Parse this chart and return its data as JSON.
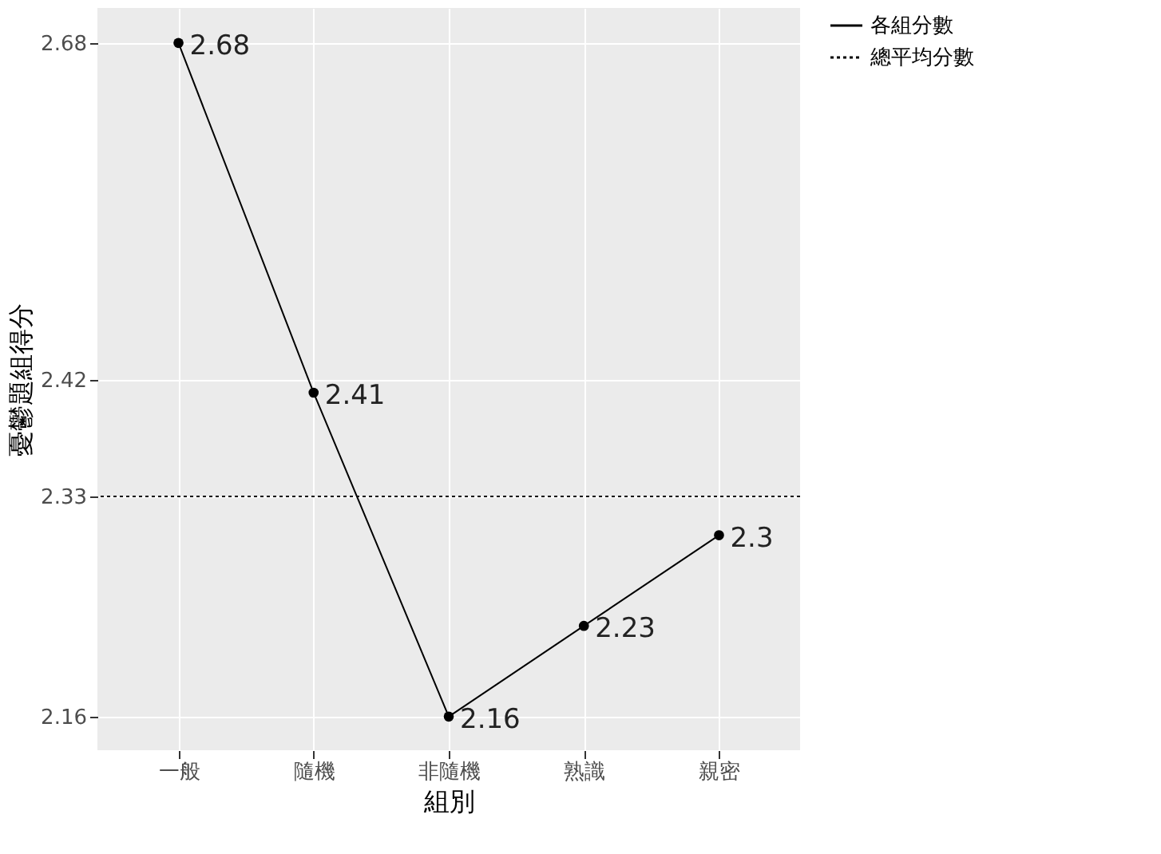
{
  "chart_data": {
    "type": "line",
    "xlabel": "組別",
    "ylabel": "憂鬱題組得分",
    "categories": [
      "一般",
      "隨機",
      "非隨機",
      "熟識",
      "親密"
    ],
    "series": [
      {
        "name": "各組分數",
        "color": "#000000",
        "values": [
          2.68,
          2.41,
          2.16,
          2.23,
          2.3
        ]
      }
    ],
    "ylim": [
      2.134,
      2.707
    ],
    "yticks": [
      2.16,
      2.33,
      2.42,
      2.68
    ],
    "ref_lines": [
      {
        "axis": "y",
        "value": 2.33,
        "label": "總平均分數",
        "color": "#000000",
        "line_style": "dotted"
      }
    ],
    "data_labels": true,
    "grid": true,
    "legend": "right",
    "marker": "circle",
    "line_style": "solid"
  }
}
